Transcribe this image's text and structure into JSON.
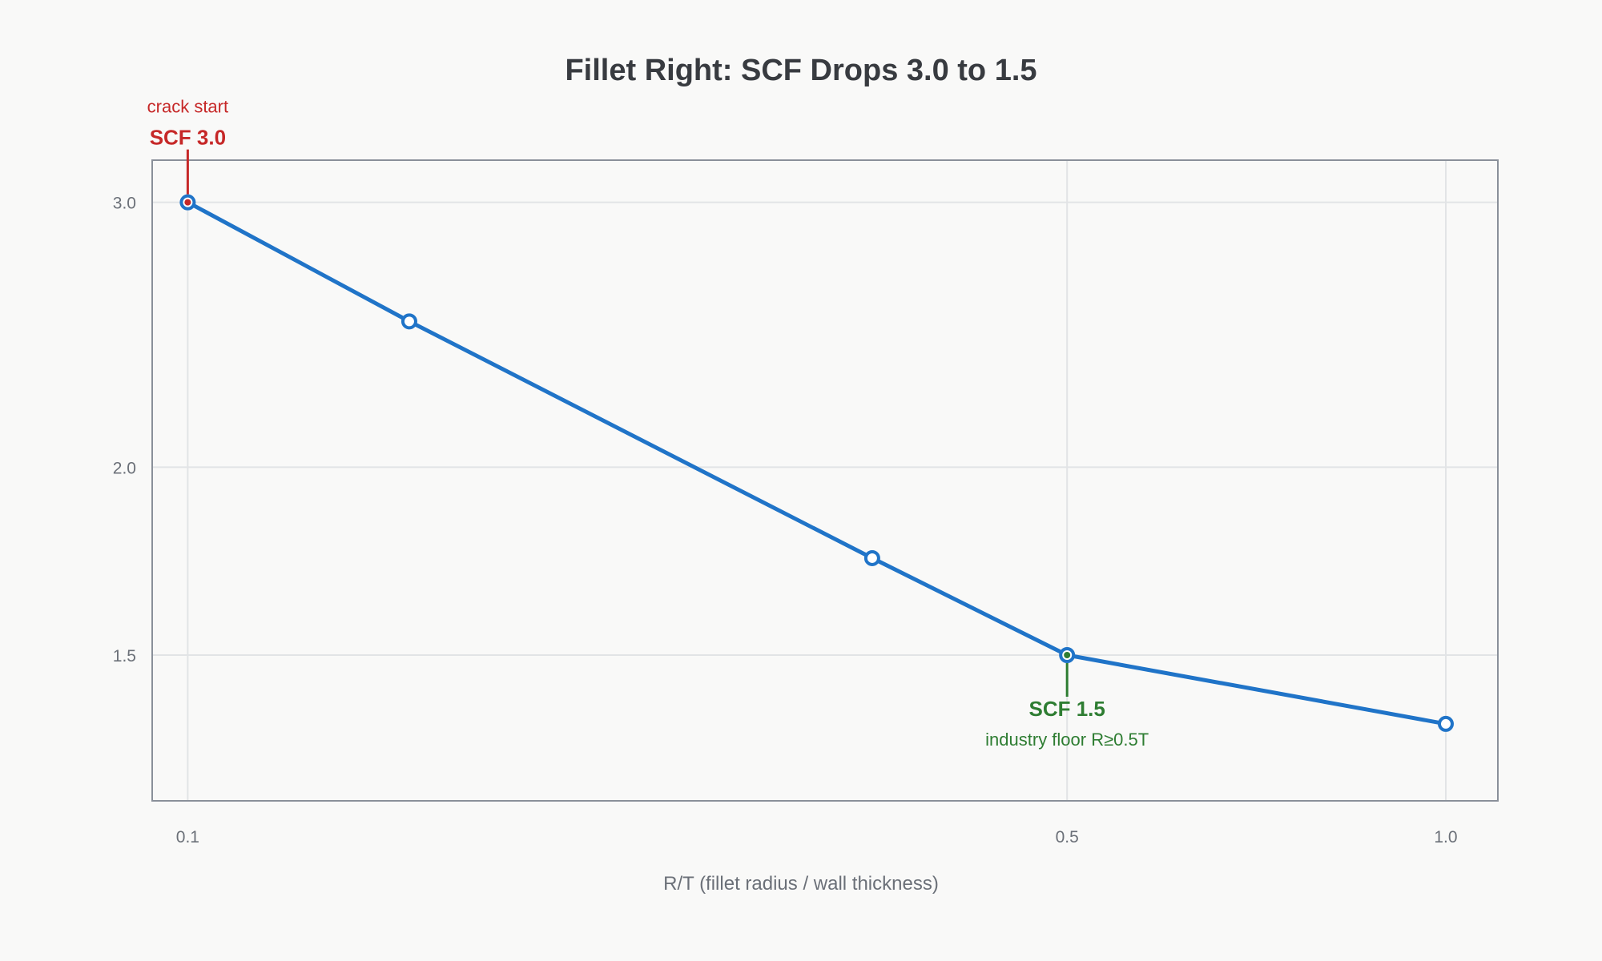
{
  "chart_data": {
    "type": "line",
    "title": "Fillet Right: SCF Drops 3.0 to 1.5",
    "xlabel": "R/T (fillet radius / wall thickness)",
    "ylabel": "",
    "x_scale": "log",
    "y_scale": "log",
    "xlim": [
      0.0937,
      1.1
    ],
    "ylim": [
      1.2,
      3.2
    ],
    "x_ticks": [
      "0.1",
      "0.5",
      "1.0"
    ],
    "x_tick_values": [
      0.1,
      0.5,
      1.0
    ],
    "y_ticks": [
      "3.0",
      "2.0",
      "1.5"
    ],
    "y_tick_values": [
      3.0,
      2.0,
      1.5
    ],
    "grid": true,
    "series": [
      {
        "color": "#2074c8",
        "x": [
          0.1,
          0.15,
          0.35,
          0.5,
          1.0
        ],
        "y": [
          3.0,
          2.5,
          1.74,
          1.5,
          1.35
        ]
      }
    ],
    "annotations": [
      {
        "x": 0.1,
        "y": 3.0,
        "label": "SCF 3.0",
        "sublabel": "crack start",
        "position": "above",
        "color": "#c62828"
      },
      {
        "x": 0.5,
        "y": 1.5,
        "label": "SCF 1.5",
        "sublabel": "industry floor R≥0.5T",
        "position": "below",
        "color": "#2e7d32"
      }
    ]
  }
}
